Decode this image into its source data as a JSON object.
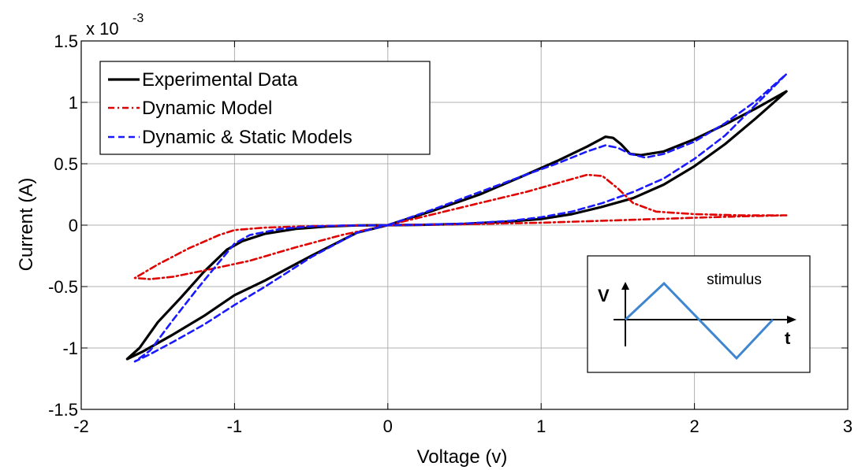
{
  "chart_data": {
    "type": "line",
    "title": "",
    "xlabel": "Voltage (v)",
    "ylabel": "Current (A)",
    "y_exponent_label": "x 10",
    "y_exponent_power": "-3",
    "xlim": [
      -2,
      3
    ],
    "ylim": [
      -1.5,
      1.5
    ],
    "x_ticks": [
      -2,
      -1,
      0,
      1,
      2,
      3
    ],
    "x_tick_labels": [
      "-2",
      "-1",
      "0",
      "1",
      "2",
      "3"
    ],
    "y_ticks": [
      -1.5,
      -1,
      -0.5,
      0,
      0.5,
      1,
      1.5
    ],
    "y_tick_labels": [
      "-1.5",
      "-1",
      "-0.5",
      "0",
      "0.5",
      "1",
      "1.5"
    ],
    "grid": true,
    "legend_position": "top-left",
    "series": [
      {
        "name": "Experimental Data",
        "color": "#000000",
        "style": "solid",
        "x": [
          0,
          0.3,
          0.6,
          0.9,
          1.1,
          1.3,
          1.42,
          1.47,
          1.52,
          1.58,
          1.65,
          1.8,
          2.0,
          2.2,
          2.4,
          2.6,
          2.4,
          2.2,
          2.0,
          1.8,
          1.6,
          1.4,
          1.2,
          1.0,
          0.8,
          0.5,
          0.2,
          0,
          -0.2,
          -0.5,
          -0.8,
          -1.0,
          -1.2,
          -1.4,
          -1.6,
          -1.7,
          -1.62,
          -1.5,
          -1.35,
          -1.2,
          -1.05,
          -0.95,
          -0.8,
          -0.6,
          -0.4,
          -0.2,
          0
        ],
        "y": [
          0,
          0.12,
          0.25,
          0.41,
          0.52,
          0.64,
          0.72,
          0.71,
          0.66,
          0.58,
          0.57,
          0.6,
          0.7,
          0.82,
          0.95,
          1.09,
          0.87,
          0.66,
          0.48,
          0.33,
          0.22,
          0.15,
          0.09,
          0.05,
          0.03,
          0.01,
          0.002,
          0,
          -0.06,
          -0.25,
          -0.45,
          -0.57,
          -0.74,
          -0.89,
          -1.03,
          -1.09,
          -1.0,
          -0.79,
          -0.59,
          -0.38,
          -0.2,
          -0.13,
          -0.07,
          -0.03,
          -0.01,
          -0.002,
          0
        ]
      },
      {
        "name": "Dynamic Model",
        "color": "#e00000",
        "style": "dashdot",
        "x": [
          0,
          0.3,
          0.6,
          0.9,
          1.1,
          1.3,
          1.4,
          1.5,
          1.6,
          1.75,
          2.0,
          2.3,
          2.6,
          2.3,
          2.0,
          1.5,
          1.0,
          0.5,
          0,
          -0.3,
          -0.6,
          -0.9,
          -1.2,
          -1.4,
          -1.55,
          -1.65,
          -1.5,
          -1.3,
          -1.1,
          -1.0,
          -0.8,
          -0.5,
          -0.2,
          0
        ],
        "y": [
          0,
          0.09,
          0.18,
          0.27,
          0.34,
          0.41,
          0.4,
          0.3,
          0.18,
          0.11,
          0.09,
          0.08,
          0.08,
          0.072,
          0.06,
          0.04,
          0.02,
          0.008,
          0,
          -0.08,
          -0.18,
          -0.29,
          -0.37,
          -0.42,
          -0.44,
          -0.43,
          -0.32,
          -0.19,
          -0.08,
          -0.04,
          -0.02,
          -0.008,
          -0.002,
          0
        ]
      },
      {
        "name": "Dynamic & Static Models",
        "color": "#1a1aff",
        "style": "dashed",
        "x": [
          0,
          0.3,
          0.6,
          0.9,
          1.1,
          1.3,
          1.42,
          1.5,
          1.58,
          1.68,
          1.8,
          2.0,
          2.2,
          2.4,
          2.6,
          2.4,
          2.2,
          2.0,
          1.8,
          1.6,
          1.4,
          1.2,
          1.0,
          0.8,
          0.5,
          0.2,
          0,
          -0.2,
          -0.5,
          -0.8,
          -1.0,
          -1.2,
          -1.4,
          -1.55,
          -1.65,
          -1.55,
          -1.4,
          -1.25,
          -1.1,
          -1.0,
          -0.9,
          -0.7,
          -0.5,
          -0.3,
          -0.1,
          0
        ],
        "y": [
          0,
          0.13,
          0.27,
          0.41,
          0.5,
          0.6,
          0.65,
          0.63,
          0.58,
          0.55,
          0.58,
          0.68,
          0.83,
          1.01,
          1.23,
          0.98,
          0.73,
          0.54,
          0.38,
          0.27,
          0.18,
          0.11,
          0.065,
          0.035,
          0.013,
          0.003,
          0,
          -0.06,
          -0.26,
          -0.5,
          -0.65,
          -0.81,
          -0.95,
          -1.05,
          -1.11,
          -1.02,
          -0.77,
          -0.53,
          -0.3,
          -0.15,
          -0.08,
          -0.03,
          -0.01,
          -0.003,
          -0.001,
          0
        ]
      }
    ],
    "inset": {
      "label": "stimulus",
      "v_axis_label": "V",
      "t_axis_label": "t",
      "wave_color": "#3f86d0"
    }
  }
}
